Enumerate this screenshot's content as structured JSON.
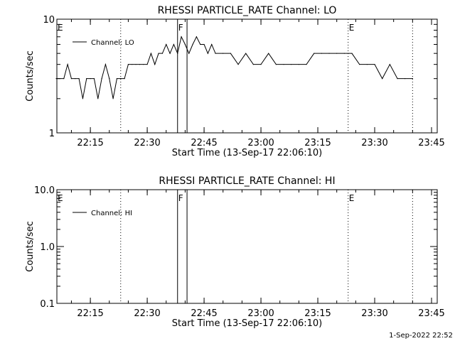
{
  "chart_data": [
    {
      "type": "line",
      "title": "RHESSI PARTICLE_RATE Channel: LO",
      "xlabel": "Start Time (13-Sep-17 22:06:10)",
      "ylabel": "Counts/sec",
      "yscale": "log",
      "ylim": [
        1,
        10
      ],
      "y_ticks": [
        "1",
        "10"
      ],
      "x_tick_labels": [
        "22:15",
        "22:30",
        "22:45",
        "23:00",
        "23:15",
        "23:30",
        "23:45"
      ],
      "x_tick_values": [
        "22:15",
        "22:30",
        "22:45",
        "23:00",
        "23:15",
        "23:30",
        "23:45"
      ],
      "xlim": [
        "22:06:10",
        "23:46:30"
      ],
      "legend": {
        "position": "top-left"
      },
      "series": [
        {
          "name": "Channel: LO",
          "x": [
            "22:06",
            "22:08",
            "22:09",
            "22:10",
            "22:11",
            "22:12",
            "22:13",
            "22:14",
            "22:15",
            "22:16",
            "22:17",
            "22:18",
            "22:19",
            "22:20",
            "22:21",
            "22:22",
            "22:23",
            "22:24",
            "22:25",
            "22:26",
            "22:27",
            "22:28",
            "22:29",
            "22:30",
            "22:31",
            "22:32",
            "22:33",
            "22:34",
            "22:35",
            "22:36",
            "22:37",
            "22:38",
            "22:39",
            "22:40",
            "22:41",
            "22:42",
            "22:43",
            "22:44",
            "22:45",
            "22:46",
            "22:47",
            "22:48",
            "22:50",
            "22:52",
            "22:54",
            "22:56",
            "22:58",
            "23:00",
            "23:02",
            "23:04",
            "23:06",
            "23:08",
            "23:10",
            "23:12",
            "23:14",
            "23:16",
            "23:18",
            "23:20",
            "23:22",
            "23:24",
            "23:26",
            "23:28",
            "23:30",
            "23:32",
            "23:34",
            "23:36",
            "23:38",
            "23:40"
          ],
          "values": [
            3,
            3,
            4,
            3,
            3,
            3,
            2,
            3,
            3,
            3,
            2,
            3,
            4,
            3,
            2,
            3,
            3,
            3,
            4,
            4,
            4,
            4,
            4,
            4,
            5,
            4,
            5,
            5,
            6,
            5,
            6,
            5,
            7,
            6,
            5,
            6,
            7,
            6,
            6,
            5,
            6,
            5,
            5,
            5,
            4,
            5,
            4,
            4,
            5,
            4,
            4,
            4,
            4,
            4,
            5,
            5,
            5,
            5,
            5,
            5,
            4,
            4,
            4,
            3,
            4,
            3,
            3,
            3
          ]
        }
      ],
      "flags": [
        {
          "label": "E",
          "time": "22:06:10"
        },
        {
          "label": "F",
          "time": "22:38"
        },
        {
          "label": "E",
          "time": "23:23"
        }
      ]
    },
    {
      "type": "line",
      "title": "RHESSI PARTICLE_RATE Channel: HI",
      "xlabel": "Start Time (13-Sep-17 22:06:10)",
      "ylabel": "Counts/sec",
      "yscale": "log",
      "ylim": [
        0.1,
        10
      ],
      "y_ticks": [
        "0.1",
        "1.0",
        "10.0"
      ],
      "x_tick_labels": [
        "22:15",
        "22:30",
        "22:45",
        "23:00",
        "23:15",
        "23:30",
        "23:45"
      ],
      "x_tick_values": [
        "22:15",
        "22:30",
        "22:45",
        "23:00",
        "23:15",
        "23:30",
        "23:45"
      ],
      "xlim": [
        "22:06:10",
        "23:46:30"
      ],
      "legend": {
        "position": "top-left"
      },
      "series": [
        {
          "name": "Channel: HI",
          "x": [],
          "values": []
        }
      ],
      "flags": [
        {
          "label": "E",
          "time": "22:06:10"
        },
        {
          "label": "F",
          "time": "22:38"
        },
        {
          "label": "E",
          "time": "23:23"
        }
      ]
    }
  ],
  "footer": {
    "timestamp": "1-Sep-2022 22:52"
  },
  "colors": {
    "line": "#000000",
    "background": "#ffffff"
  }
}
